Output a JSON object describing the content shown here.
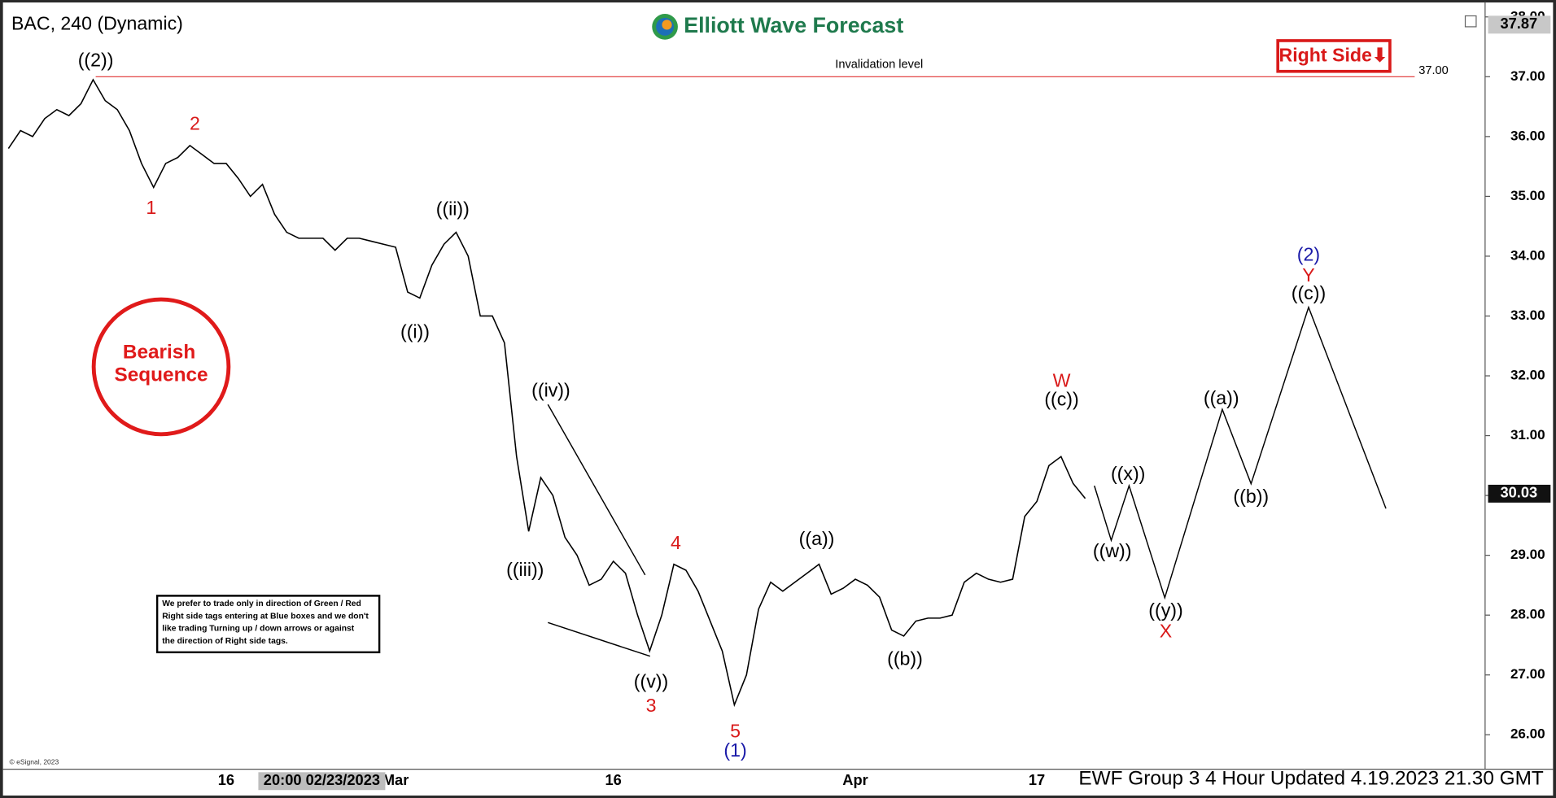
{
  "header": {
    "symbol": "BAC, 240 (Dynamic)",
    "brand": "Elliott Wave Forecast",
    "tag": "Right Side⬇"
  },
  "badge": [
    "Bearish",
    "Sequence"
  ],
  "note": [
    "We prefer to trade only in direction of Green / Red",
    "Right side tags entering at Blue boxes and we don't",
    "like trading Turning up / down arrows or against",
    "the direction of Right side tags."
  ],
  "copyright": "© eSignal, 2023",
  "crosshair_label": "20:00 02/23/2023",
  "footer": "EWF Group 3 4 Hour Updated 4.19.2023 21.30 GMT",
  "chart_data": {
    "type": "line",
    "color": "#000000",
    "categories": [
      null,
      null,
      null,
      null,
      null,
      null,
      null,
      null,
      null,
      null,
      null,
      null,
      null,
      null,
      null,
      null,
      null,
      null,
      "16",
      null,
      null,
      null,
      null,
      null,
      null,
      null,
      null,
      null,
      null,
      null,
      null,
      null,
      "Mar",
      null,
      null,
      null,
      null,
      null,
      null,
      null,
      null,
      null,
      null,
      null,
      null,
      null,
      null,
      null,
      null,
      null,
      "16",
      null,
      null,
      null,
      null,
      null,
      null,
      null,
      null,
      null,
      null,
      null,
      null,
      null,
      null,
      null,
      null,
      null,
      null,
      null,
      "Apr",
      null,
      null,
      null,
      null,
      null,
      null,
      null,
      null,
      null,
      null,
      null,
      null,
      null,
      null,
      "17",
      null,
      null,
      null,
      null
    ],
    "values": [
      35.8,
      36.1,
      36.0,
      36.3,
      36.45,
      36.35,
      36.55,
      36.95,
      36.6,
      36.45,
      36.1,
      35.55,
      35.15,
      35.55,
      35.65,
      35.85,
      35.7,
      35.55,
      35.55,
      35.3,
      35.0,
      35.2,
      34.7,
      34.4,
      34.3,
      34.3,
      34.3,
      34.1,
      34.3,
      34.3,
      34.25,
      34.2,
      34.15,
      33.4,
      33.3,
      33.85,
      34.2,
      34.4,
      34.0,
      33.0,
      33.0,
      32.55,
      30.65,
      29.4,
      30.3,
      30.0,
      29.3,
      29.0,
      28.5,
      28.6,
      28.9,
      28.7,
      28.0,
      27.4,
      28.0,
      28.85,
      28.75,
      28.4,
      27.9,
      27.4,
      26.5,
      27.0,
      28.1,
      28.55,
      28.4,
      28.55,
      28.7,
      28.85,
      28.35,
      28.45,
      28.6,
      28.5,
      28.3,
      27.75,
      27.65,
      27.9,
      27.95,
      27.95,
      28.0,
      28.55,
      28.7,
      28.6,
      28.55,
      28.6,
      29.65,
      29.9,
      30.5,
      30.65,
      30.2,
      29.95
    ],
    "ylim": [
      25.44,
      38.15
    ],
    "yticks": [
      {
        "value": 26,
        "label": "26.00"
      },
      {
        "value": 27,
        "label": "27.00"
      },
      {
        "value": 28,
        "label": "28.00"
      },
      {
        "value": 29,
        "label": "29.00"
      },
      {
        "value": 30,
        "label": "30.00"
      },
      {
        "value": 31,
        "label": "31.00"
      },
      {
        "value": 32,
        "label": "32.00"
      },
      {
        "value": 33,
        "label": "33.00"
      },
      {
        "value": 34,
        "label": "34.00"
      },
      {
        "value": 35,
        "label": "35.00"
      },
      {
        "value": 36,
        "label": "36.00"
      },
      {
        "value": 37,
        "label": "37.00"
      },
      {
        "value": 38,
        "label": "38.00"
      }
    ],
    "reference_line": {
      "value": 37.0,
      "label": "37.00",
      "text": "Invalidation level",
      "color": "#e03030"
    },
    "price_labels": [
      {
        "value": 37.87,
        "label": "37.87"
      },
      {
        "value": 30.03,
        "label": "30.03"
      }
    ],
    "wave_labels": [
      {
        "text": "((2))",
        "color": "#000000"
      },
      {
        "text": "2",
        "color": "#d91a1a"
      },
      {
        "text": "1",
        "color": "#d91a1a"
      },
      {
        "text": "((ii))",
        "color": "#000000"
      },
      {
        "text": "((i))",
        "color": "#000000"
      },
      {
        "text": "((iv))",
        "color": "#000000"
      },
      {
        "text": "((iii))",
        "color": "#000000"
      },
      {
        "text": "4",
        "color": "#d91a1a"
      },
      {
        "text": "((v))",
        "color": "#000000"
      },
      {
        "text": "3",
        "color": "#d91a1a"
      },
      {
        "text": "5",
        "color": "#d91a1a"
      },
      {
        "text": "(1)",
        "color": "#1a1aa8"
      },
      {
        "text": "((a))",
        "color": "#000000"
      },
      {
        "text": "((b))",
        "color": "#000000"
      },
      {
        "text": "W",
        "color": "#d91a1a"
      },
      {
        "text": "((c))",
        "color": "#000000"
      },
      {
        "text": "((x))",
        "color": "#000000"
      },
      {
        "text": "((w))",
        "color": "#000000"
      },
      {
        "text": "((y))",
        "color": "#000000"
      },
      {
        "text": "X",
        "color": "#d91a1a"
      },
      {
        "text": "((a))",
        "color": "#000000"
      },
      {
        "text": "((b))",
        "color": "#000000"
      },
      {
        "text": "(2)",
        "color": "#1a1aa8"
      },
      {
        "text": "Y",
        "color": "#d91a1a"
      },
      {
        "text": "((c))",
        "color": "#000000"
      }
    ]
  }
}
